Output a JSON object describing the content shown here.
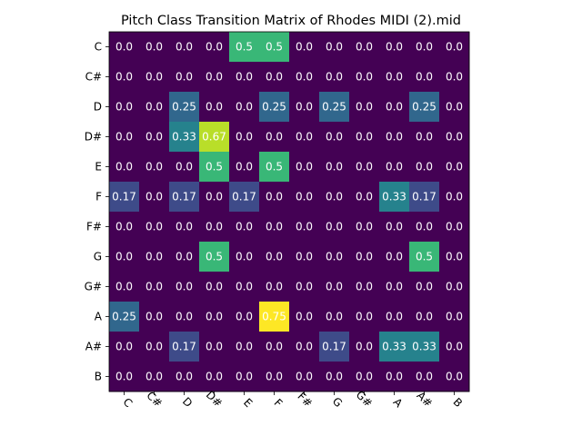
{
  "chart_data": {
    "type": "heatmap",
    "title": "Pitch Class Transition Matrix of Rhodes MIDI (2).mid",
    "xlabel": "",
    "ylabel": "",
    "x_categories": [
      "C",
      "C#",
      "D",
      "D#",
      "E",
      "F",
      "F#",
      "G",
      "G#",
      "A",
      "A#",
      "B"
    ],
    "y_categories": [
      "C",
      "C#",
      "D",
      "D#",
      "E",
      "F",
      "F#",
      "G",
      "G#",
      "A",
      "A#",
      "B"
    ],
    "x_tick_rotation_deg": 45,
    "colormap": "viridis",
    "value_range": [
      0,
      0.75
    ],
    "matrix": [
      [
        "0.0",
        "0.0",
        "0.0",
        "0.0",
        "0.5",
        "0.5",
        "0.0",
        "0.0",
        "0.0",
        "0.0",
        "0.0",
        "0.0"
      ],
      [
        "0.0",
        "0.0",
        "0.0",
        "0.0",
        "0.0",
        "0.0",
        "0.0",
        "0.0",
        "0.0",
        "0.0",
        "0.0",
        "0.0"
      ],
      [
        "0.0",
        "0.0",
        "0.25",
        "0.0",
        "0.0",
        "0.25",
        "0.0",
        "0.25",
        "0.0",
        "0.0",
        "0.25",
        "0.0"
      ],
      [
        "0.0",
        "0.0",
        "0.33",
        "0.67",
        "0.0",
        "0.0",
        "0.0",
        "0.0",
        "0.0",
        "0.0",
        "0.0",
        "0.0"
      ],
      [
        "0.0",
        "0.0",
        "0.0",
        "0.5",
        "0.0",
        "0.5",
        "0.0",
        "0.0",
        "0.0",
        "0.0",
        "0.0",
        "0.0"
      ],
      [
        "0.17",
        "0.0",
        "0.17",
        "0.0",
        "0.17",
        "0.0",
        "0.0",
        "0.0",
        "0.0",
        "0.33",
        "0.17",
        "0.0"
      ],
      [
        "0.0",
        "0.0",
        "0.0",
        "0.0",
        "0.0",
        "0.0",
        "0.0",
        "0.0",
        "0.0",
        "0.0",
        "0.0",
        "0.0"
      ],
      [
        "0.0",
        "0.0",
        "0.0",
        "0.5",
        "0.0",
        "0.0",
        "0.0",
        "0.0",
        "0.0",
        "0.0",
        "0.5",
        "0.0"
      ],
      [
        "0.0",
        "0.0",
        "0.0",
        "0.0",
        "0.0",
        "0.0",
        "0.0",
        "0.0",
        "0.0",
        "0.0",
        "0.0",
        "0.0"
      ],
      [
        "0.25",
        "0.0",
        "0.0",
        "0.0",
        "0.0",
        "0.75",
        "0.0",
        "0.0",
        "0.0",
        "0.0",
        "0.0",
        "0.0"
      ],
      [
        "0.0",
        "0.0",
        "0.17",
        "0.0",
        "0.0",
        "0.0",
        "0.0",
        "0.17",
        "0.0",
        "0.33",
        "0.33",
        "0.0"
      ],
      [
        "0.0",
        "0.0",
        "0.0",
        "0.0",
        "0.0",
        "0.0",
        "0.0",
        "0.0",
        "0.0",
        "0.0",
        "0.0",
        "0.0"
      ]
    ]
  }
}
